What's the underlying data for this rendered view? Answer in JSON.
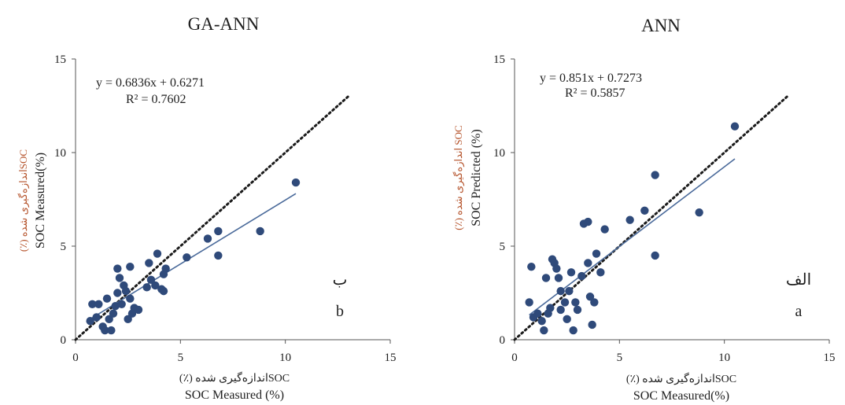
{
  "figure": {
    "panels": [
      {
        "title": "GA-ANN",
        "equation": "y = 0.6836x   + 0.6271",
        "r2": "R² = 0.7602",
        "corner_label_fa": "ب",
        "corner_label_en": "b",
        "xlabel_fa": "SOCاندازه‌گیری شده (٪)",
        "xlabel_en": "SOC Measured (%)",
        "ylabel_fa": "SOCاندازه‌گیری شده (٪)",
        "ylabel_en": "SOC Measured(%)"
      },
      {
        "title": "ANN",
        "equation": "y = 0.851x + 0.7273",
        "r2": "R² = 0.5857",
        "corner_label_fa": "الف",
        "corner_label_en": "a",
        "xlabel_fa": "SOCاندازه‌گیری شده (٪)",
        "xlabel_en": "SOC Measured(%)",
        "ylabel_fa": "SOC اندازه‌گیری شده (٪)",
        "ylabel_en": "SOC Predicted (%)"
      }
    ]
  },
  "chart_data": [
    {
      "type": "scatter",
      "title": "GA-ANN",
      "xlabel": "SOC Measured (%)",
      "ylabel": "SOC Measured(%)",
      "xlim": [
        0,
        15
      ],
      "ylim": [
        0,
        15
      ],
      "xticks": [
        0,
        5,
        10,
        15
      ],
      "yticks": [
        0,
        5,
        10,
        15
      ],
      "grid": false,
      "colors": {
        "points": "#2f4a7a",
        "trend": "#4a6a9a",
        "one_to_one": "#1a1a1a"
      },
      "points": [
        [
          0.7,
          1.0
        ],
        [
          0.8,
          1.9
        ],
        [
          1.0,
          1.2
        ],
        [
          1.1,
          1.9
        ],
        [
          1.3,
          0.7
        ],
        [
          1.4,
          0.5
        ],
        [
          1.5,
          2.2
        ],
        [
          1.6,
          1.1
        ],
        [
          1.7,
          0.5
        ],
        [
          1.8,
          1.4
        ],
        [
          1.9,
          1.8
        ],
        [
          2.0,
          2.5
        ],
        [
          2.0,
          3.8
        ],
        [
          2.1,
          3.3
        ],
        [
          2.2,
          1.9
        ],
        [
          2.3,
          2.9
        ],
        [
          2.4,
          2.6
        ],
        [
          2.5,
          1.1
        ],
        [
          2.6,
          2.2
        ],
        [
          2.7,
          1.4
        ],
        [
          2.8,
          1.7
        ],
        [
          3.0,
          1.6
        ],
        [
          2.6,
          3.9
        ],
        [
          3.4,
          2.8
        ],
        [
          3.5,
          4.1
        ],
        [
          3.6,
          3.2
        ],
        [
          3.8,
          2.9
        ],
        [
          3.9,
          4.6
        ],
        [
          4.1,
          2.7
        ],
        [
          4.2,
          3.5
        ],
        [
          4.3,
          3.8
        ],
        [
          4.2,
          2.6
        ],
        [
          5.3,
          4.4
        ],
        [
          6.3,
          5.4
        ],
        [
          6.8,
          5.8
        ],
        [
          6.8,
          4.5
        ],
        [
          8.8,
          5.8
        ],
        [
          10.5,
          8.4
        ]
      ],
      "trendline": {
        "slope": 0.6836,
        "intercept": 0.6271,
        "x_range": [
          0.7,
          10.5
        ],
        "label": "y = 0.6836x   + 0.6271",
        "r2": 0.7602
      },
      "one_to_one_line": {
        "x_range": [
          0,
          13
        ]
      }
    },
    {
      "type": "scatter",
      "title": "ANN",
      "xlabel": "SOC Measured(%)",
      "ylabel": "SOC Predicted (%)",
      "xlim": [
        0,
        15
      ],
      "ylim": [
        0,
        15
      ],
      "xticks": [
        0,
        5,
        10,
        15
      ],
      "yticks": [
        0,
        5,
        10,
        15
      ],
      "grid": false,
      "colors": {
        "points": "#2f4a7a",
        "trend": "#4a6a9a",
        "one_to_one": "#1a1a1a"
      },
      "points": [
        [
          0.7,
          2.0
        ],
        [
          0.8,
          3.9
        ],
        [
          0.9,
          1.2
        ],
        [
          1.1,
          1.4
        ],
        [
          1.3,
          1.0
        ],
        [
          1.4,
          0.5
        ],
        [
          1.5,
          3.3
        ],
        [
          1.6,
          1.4
        ],
        [
          1.7,
          1.7
        ],
        [
          1.8,
          4.3
        ],
        [
          1.9,
          4.1
        ],
        [
          2.0,
          3.8
        ],
        [
          2.1,
          3.3
        ],
        [
          2.2,
          2.6
        ],
        [
          2.2,
          1.6
        ],
        [
          2.4,
          2.0
        ],
        [
          2.5,
          1.1
        ],
        [
          2.6,
          2.6
        ],
        [
          2.8,
          0.5
        ],
        [
          2.9,
          2.0
        ],
        [
          3.0,
          1.6
        ],
        [
          3.2,
          3.4
        ],
        [
          3.3,
          6.2
        ],
        [
          3.5,
          6.3
        ],
        [
          3.5,
          4.1
        ],
        [
          3.6,
          2.3
        ],
        [
          3.8,
          2.0
        ],
        [
          3.9,
          4.6
        ],
        [
          4.1,
          3.6
        ],
        [
          4.3,
          5.9
        ],
        [
          5.5,
          6.4
        ],
        [
          6.2,
          6.9
        ],
        [
          6.7,
          8.8
        ],
        [
          6.7,
          4.5
        ],
        [
          8.8,
          6.8
        ],
        [
          10.5,
          11.4
        ],
        [
          3.7,
          0.8
        ],
        [
          2.7,
          3.6
        ]
      ],
      "trendline": {
        "slope": 0.851,
        "intercept": 0.7273,
        "x_range": [
          0.7,
          10.5
        ],
        "label": "y = 0.851x + 0.7273",
        "r2": 0.5857
      },
      "one_to_one_line": {
        "x_range": [
          0,
          13
        ]
      }
    }
  ]
}
